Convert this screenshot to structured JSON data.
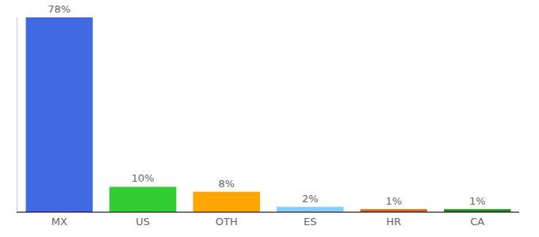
{
  "chart_data": {
    "type": "bar",
    "categories": [
      "MX",
      "US",
      "OTH",
      "ES",
      "HR",
      "CA"
    ],
    "values": [
      78,
      10,
      8,
      2,
      1,
      1
    ],
    "value_labels": [
      "78%",
      "10%",
      "8%",
      "2%",
      "1%",
      "1%"
    ],
    "colors": [
      "#4169e1",
      "#32cd32",
      "#ffa500",
      "#87cefa",
      "#d2691e",
      "#228b22"
    ],
    "ylim": [
      0,
      78
    ],
    "yticks": [],
    "grid": false,
    "data_labels": true,
    "tick_labels": "x"
  }
}
